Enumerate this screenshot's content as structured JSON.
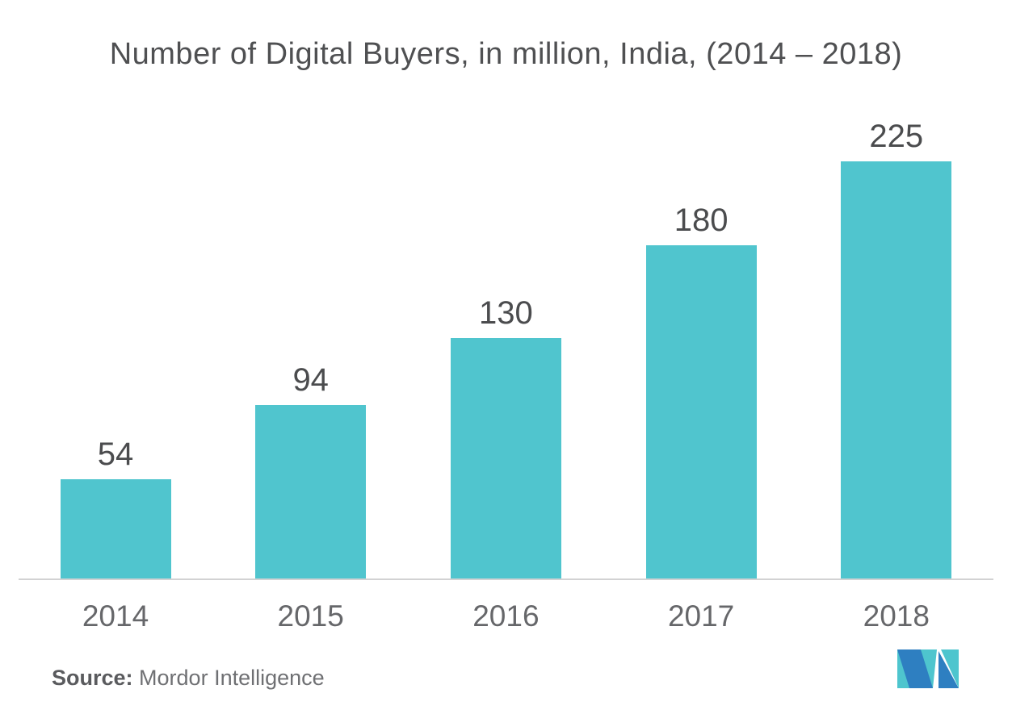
{
  "chart_data": {
    "type": "bar",
    "title": "Number of Digital Buyers, in million, India, (2014 – 2018)",
    "categories": [
      "2014",
      "2015",
      "2016",
      "2017",
      "2018"
    ],
    "values": [
      54,
      94,
      130,
      180,
      225
    ],
    "xlabel": "",
    "ylabel": "",
    "ylim": [
      0,
      240
    ],
    "grid": false,
    "legend": false,
    "value_labels_shown": true,
    "bar_color": "#50C5CE",
    "title_color": "#4F5052",
    "value_label_color": "#4B4C4E",
    "axis_label_color": "#66676A",
    "axis_line_color": "#D2D2D3"
  },
  "source": {
    "label": "Source:",
    "text": "Mordor Intelligence",
    "label_color": "#5A5B5E",
    "text_color": "#6F7073"
  },
  "logo": {
    "name": "mordor-intelligence-logo",
    "teal": "#4EC5CE",
    "blue": "#2E7FC1"
  }
}
